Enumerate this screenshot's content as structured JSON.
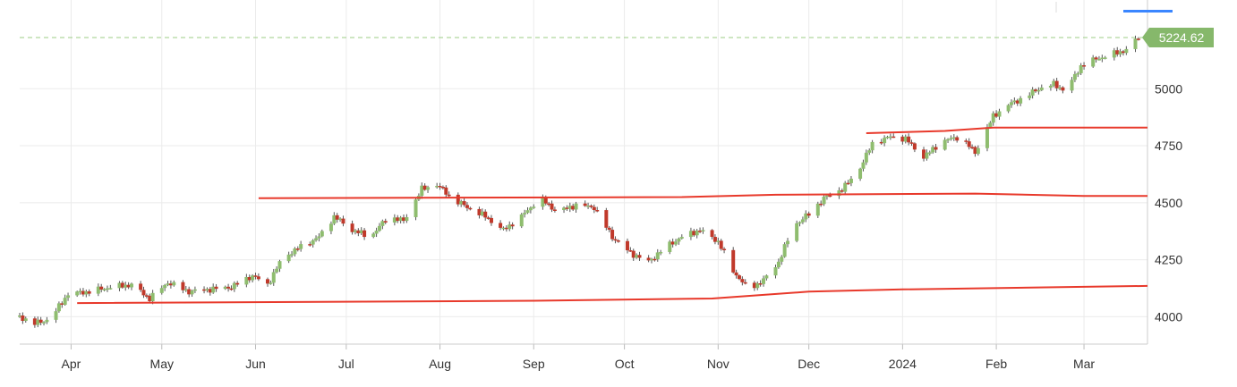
{
  "chart_data": {
    "type": "candlestick",
    "x_tick_labels": [
      "Apr",
      "May",
      "Jun",
      "Jul",
      "Aug",
      "Sep",
      "Oct",
      "Nov",
      "Dec",
      "2024",
      "Feb",
      "Mar"
    ],
    "x_tick_dates": [
      "2023-04-01",
      "2023-05-01",
      "2023-06-01",
      "2023-07-01",
      "2023-08-01",
      "2023-09-01",
      "2023-10-01",
      "2023-11-01",
      "2023-12-01",
      "2024-01-01",
      "2024-02-01",
      "2024-03-01"
    ],
    "x_range": [
      "2023-03-15",
      "2024-03-22"
    ],
    "y_ticks": [
      4000,
      4250,
      4500,
      4750,
      5000
    ],
    "y_range": [
      3880,
      5350
    ],
    "grid": true,
    "last_price": 5224.62,
    "last_price_label": "5224.62",
    "colors": {
      "up": "#8fbd6f",
      "down": "#c0392b",
      "trendline": "#e8392b",
      "grid": "#ebebeb",
      "price_line": "#9ccc86",
      "price_tag": "#86b86b",
      "accent": "#3a86ff"
    },
    "series": [
      {
        "name": "",
        "type": "candlestick",
        "points": [
          {
            "date": "2023-03-15",
            "value": 4000
          },
          {
            "date": "2023-03-20",
            "value": 3970
          },
          {
            "date": "2023-03-25",
            "value": 3990
          },
          {
            "date": "2023-03-31",
            "value": 4100
          },
          {
            "date": "2023-04-07",
            "value": 4110
          },
          {
            "date": "2023-04-14",
            "value": 4130
          },
          {
            "date": "2023-04-21",
            "value": 4140
          },
          {
            "date": "2023-04-27",
            "value": 4080
          },
          {
            "date": "2023-05-03",
            "value": 4150
          },
          {
            "date": "2023-05-10",
            "value": 4110
          },
          {
            "date": "2023-05-17",
            "value": 4120
          },
          {
            "date": "2023-05-24",
            "value": 4130
          },
          {
            "date": "2023-05-31",
            "value": 4180
          },
          {
            "date": "2023-06-05",
            "value": 4140
          },
          {
            "date": "2023-06-10",
            "value": 4260
          },
          {
            "date": "2023-06-15",
            "value": 4300
          },
          {
            "date": "2023-06-22",
            "value": 4350
          },
          {
            "date": "2023-06-27",
            "value": 4440
          },
          {
            "date": "2023-07-03",
            "value": 4380
          },
          {
            "date": "2023-07-09",
            "value": 4350
          },
          {
            "date": "2023-07-15",
            "value": 4440
          },
          {
            "date": "2023-07-20",
            "value": 4420
          },
          {
            "date": "2023-07-26",
            "value": 4560
          },
          {
            "date": "2023-07-31",
            "value": 4580
          },
          {
            "date": "2023-08-05",
            "value": 4520
          },
          {
            "date": "2023-08-10",
            "value": 4480
          },
          {
            "date": "2023-08-16",
            "value": 4440
          },
          {
            "date": "2023-08-22",
            "value": 4380
          },
          {
            "date": "2023-08-28",
            "value": 4440
          },
          {
            "date": "2023-09-03",
            "value": 4520
          },
          {
            "date": "2023-09-09",
            "value": 4460
          },
          {
            "date": "2023-09-15",
            "value": 4490
          },
          {
            "date": "2023-09-21",
            "value": 4480
          },
          {
            "date": "2023-09-27",
            "value": 4350
          },
          {
            "date": "2023-10-03",
            "value": 4280
          },
          {
            "date": "2023-10-09",
            "value": 4240
          },
          {
            "date": "2023-10-14",
            "value": 4300
          },
          {
            "date": "2023-10-20",
            "value": 4350
          },
          {
            "date": "2023-10-26",
            "value": 4380
          },
          {
            "date": "2023-11-01",
            "value": 4330
          },
          {
            "date": "2023-11-06",
            "value": 4200
          },
          {
            "date": "2023-11-11",
            "value": 4120
          },
          {
            "date": "2023-11-16",
            "value": 4160
          },
          {
            "date": "2023-11-21",
            "value": 4240
          },
          {
            "date": "2023-11-26",
            "value": 4400
          },
          {
            "date": "2023-12-01",
            "value": 4450
          },
          {
            "date": "2023-12-06",
            "value": 4520
          },
          {
            "date": "2023-12-12",
            "value": 4560
          },
          {
            "date": "2023-12-17",
            "value": 4630
          },
          {
            "date": "2023-12-22",
            "value": 4760
          },
          {
            "date": "2023-12-28",
            "value": 4790
          },
          {
            "date": "2024-01-02",
            "value": 4780
          },
          {
            "date": "2024-01-08",
            "value": 4700
          },
          {
            "date": "2024-01-14",
            "value": 4770
          },
          {
            "date": "2024-01-20",
            "value": 4790
          },
          {
            "date": "2024-01-25",
            "value": 4720
          },
          {
            "date": "2024-01-31",
            "value": 4880
          },
          {
            "date": "2024-02-05",
            "value": 4930
          },
          {
            "date": "2024-02-10",
            "value": 4960
          },
          {
            "date": "2024-02-15",
            "value": 5000
          },
          {
            "date": "2024-02-20",
            "value": 5020
          },
          {
            "date": "2024-02-24",
            "value": 4990
          },
          {
            "date": "2024-02-29",
            "value": 5100
          },
          {
            "date": "2024-03-05",
            "value": 5130
          },
          {
            "date": "2024-03-10",
            "value": 5150
          },
          {
            "date": "2024-03-15",
            "value": 5170
          },
          {
            "date": "2024-03-19",
            "value": 5224.62
          }
        ]
      },
      {
        "name": "",
        "type": "line",
        "points": [
          {
            "date": "2023-06-02",
            "value": 4520
          },
          {
            "date": "2023-10-20",
            "value": 4525
          },
          {
            "date": "2023-11-20",
            "value": 4535
          },
          {
            "date": "2024-01-25",
            "value": 4540
          },
          {
            "date": "2024-03-01",
            "value": 4530
          },
          {
            "date": "2024-03-22",
            "value": 4530
          }
        ]
      },
      {
        "name": "",
        "type": "line",
        "points": [
          {
            "date": "2023-04-03",
            "value": 4060
          },
          {
            "date": "2023-09-01",
            "value": 4070
          },
          {
            "date": "2023-10-30",
            "value": 4080
          },
          {
            "date": "2023-12-01",
            "value": 4110
          },
          {
            "date": "2024-01-01",
            "value": 4120
          },
          {
            "date": "2024-03-22",
            "value": 4135
          }
        ]
      },
      {
        "name": "",
        "type": "line",
        "points": [
          {
            "date": "2023-12-20",
            "value": 4805
          },
          {
            "date": "2024-01-15",
            "value": 4815
          },
          {
            "date": "2024-01-31",
            "value": 4830
          },
          {
            "date": "2024-03-22",
            "value": 4830
          }
        ]
      }
    ]
  }
}
